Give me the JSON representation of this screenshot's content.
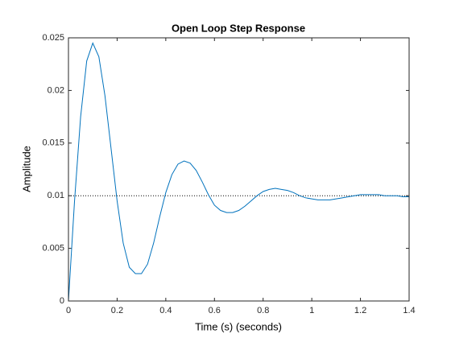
{
  "chart_data": {
    "type": "line",
    "title": "Open Loop Step Response",
    "xlabel": "Time (s) (seconds)",
    "ylabel": "Amplitude",
    "x": [
      0,
      0.025,
      0.05,
      0.075,
      0.1,
      0.125,
      0.15,
      0.175,
      0.2,
      0.225,
      0.25,
      0.275,
      0.3,
      0.325,
      0.35,
      0.375,
      0.4,
      0.425,
      0.45,
      0.475,
      0.5,
      0.525,
      0.55,
      0.575,
      0.6,
      0.625,
      0.65,
      0.675,
      0.7,
      0.725,
      0.75,
      0.775,
      0.8,
      0.825,
      0.85,
      0.875,
      0.9,
      0.925,
      0.95,
      0.975,
      1.0,
      1.025,
      1.05,
      1.075,
      1.1,
      1.125,
      1.15,
      1.175,
      1.2,
      1.225,
      1.25,
      1.275,
      1.3,
      1.325,
      1.35,
      1.375,
      1.4
    ],
    "values": [
      0,
      0.0095,
      0.0175,
      0.0228,
      0.0245,
      0.0232,
      0.0195,
      0.0145,
      0.0095,
      0.0055,
      0.0032,
      0.0026,
      0.0026,
      0.0035,
      0.0055,
      0.008,
      0.0103,
      0.012,
      0.013,
      0.0133,
      0.0131,
      0.0124,
      0.0113,
      0.0101,
      0.0091,
      0.0086,
      0.0084,
      0.0084,
      0.0086,
      0.009,
      0.0095,
      0.01,
      0.0104,
      0.0106,
      0.0107,
      0.0106,
      0.0105,
      0.0103,
      0.01,
      0.0098,
      0.0097,
      0.0096,
      0.0096,
      0.0096,
      0.0097,
      0.0098,
      0.0099,
      0.01,
      0.0101,
      0.0101,
      0.0101,
      0.0101,
      0.01,
      0.01,
      0.01,
      0.0099,
      0.0099
    ],
    "color": "#0072bd",
    "steady_state": 0.01,
    "xlim": [
      0,
      1.4
    ],
    "ylim": [
      0,
      0.025
    ],
    "xticks": [
      0,
      0.2,
      0.4,
      0.6,
      0.8,
      1,
      1.2,
      1.4
    ],
    "yticks": [
      0,
      0.005,
      0.01,
      0.015,
      0.02,
      0.025
    ],
    "grid": false
  }
}
